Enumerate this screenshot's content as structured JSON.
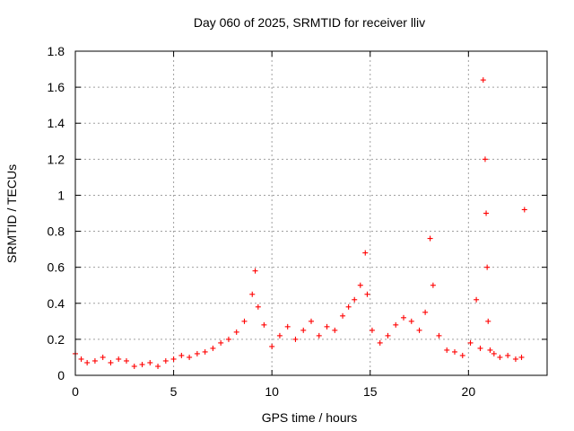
{
  "chart_data": {
    "type": "scatter",
    "title": "Day 060 of 2025, SRMTID for receiver lliv",
    "xlabel": "GPS time / hours",
    "ylabel": "SRMTID / TECUs",
    "xlim": [
      0,
      24
    ],
    "ylim": [
      0,
      1.8
    ],
    "xticks": [
      0,
      5,
      10,
      15,
      20
    ],
    "xtick_labels": [
      "0",
      "5",
      "10",
      "15",
      "20"
    ],
    "yticks": [
      0,
      0.2,
      0.4,
      0.6,
      0.8,
      1.0,
      1.2,
      1.4,
      1.6,
      1.8
    ],
    "ytick_labels": [
      "0",
      "0.2",
      "0.4",
      "0.6",
      "0.8",
      "1",
      "1.2",
      "1.4",
      "1.6",
      "1.8"
    ],
    "grid": true,
    "marker": "+",
    "color": "#ff0000",
    "series": [
      {
        "name": "SRMTID",
        "x": [
          0.0,
          0.3,
          0.6,
          1.0,
          1.4,
          1.8,
          2.2,
          2.6,
          3.0,
          3.4,
          3.8,
          4.2,
          4.6,
          5.0,
          5.4,
          5.8,
          6.2,
          6.6,
          7.0,
          7.4,
          7.8,
          8.2,
          8.6,
          9.0,
          9.15,
          9.3,
          9.6,
          10.0,
          10.4,
          10.8,
          11.2,
          11.6,
          12.0,
          12.4,
          12.8,
          13.2,
          13.6,
          13.9,
          14.2,
          14.5,
          14.75,
          14.85,
          15.1,
          15.5,
          15.9,
          16.3,
          16.7,
          17.1,
          17.5,
          17.8,
          18.05,
          18.2,
          18.5,
          18.9,
          19.3,
          19.7,
          20.1,
          20.4,
          20.6,
          20.75,
          20.85,
          20.9,
          20.95,
          21.0,
          21.1,
          21.3,
          21.6,
          22.0,
          22.4,
          22.7,
          22.85
        ],
        "y": [
          0.12,
          0.09,
          0.07,
          0.08,
          0.1,
          0.07,
          0.09,
          0.08,
          0.05,
          0.06,
          0.07,
          0.05,
          0.08,
          0.09,
          0.11,
          0.1,
          0.12,
          0.13,
          0.15,
          0.18,
          0.2,
          0.24,
          0.3,
          0.45,
          0.58,
          0.38,
          0.28,
          0.16,
          0.22,
          0.27,
          0.2,
          0.25,
          0.3,
          0.22,
          0.27,
          0.25,
          0.33,
          0.38,
          0.42,
          0.5,
          0.68,
          0.45,
          0.25,
          0.18,
          0.22,
          0.28,
          0.32,
          0.3,
          0.25,
          0.35,
          0.76,
          0.5,
          0.22,
          0.14,
          0.13,
          0.11,
          0.18,
          0.42,
          0.15,
          1.64,
          1.2,
          0.9,
          0.6,
          0.3,
          0.14,
          0.12,
          0.1,
          0.11,
          0.09,
          0.1,
          0.92
        ]
      }
    ]
  }
}
